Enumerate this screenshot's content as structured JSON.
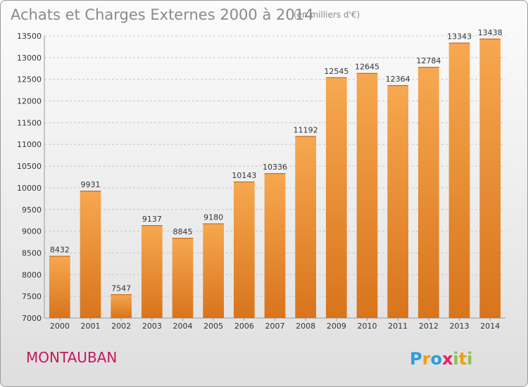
{
  "chart_data": {
    "type": "bar",
    "title": "Achats et Charges Externes 2000 à 2014",
    "subtitle": "(en milliers d'€)",
    "categories": [
      "2000",
      "2001",
      "2002",
      "2003",
      "2004",
      "2005",
      "2006",
      "2007",
      "2008",
      "2009",
      "2010",
      "2011",
      "2012",
      "2013",
      "2014"
    ],
    "values": [
      8432,
      9931,
      7547,
      9137,
      8845,
      9180,
      10143,
      10336,
      11192,
      12545,
      12645,
      12364,
      12784,
      13343,
      13438
    ],
    "ylim": [
      7000,
      13500
    ],
    "yticks": [
      7000,
      7500,
      8000,
      8500,
      9000,
      9500,
      10000,
      10500,
      11000,
      11500,
      12000,
      12500,
      13000,
      13500
    ],
    "grid": true,
    "bar_color_light": "#f7a850",
    "bar_color_dark": "#d8741c"
  },
  "footer": {
    "city": "MONTAUBAN",
    "brand_letters": [
      "P",
      "r",
      "o",
      "x",
      "i",
      "t",
      "i"
    ],
    "brand_colors": [
      "#2e9be0",
      "#f39c12",
      "#2e9be0",
      "#e91e63",
      "#8bc34a",
      "#f39c12",
      "#8bc34a"
    ]
  }
}
